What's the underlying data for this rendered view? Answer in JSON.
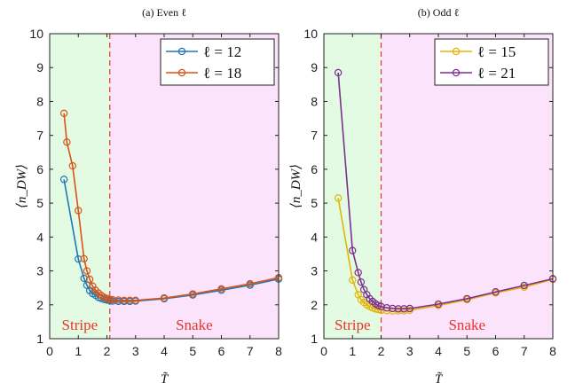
{
  "chart_data": [
    {
      "type": "line",
      "title": "(a) Even ℓ",
      "xlabel": "T̃",
      "ylabel": "⟨n_DW⟩",
      "xlim": [
        0,
        8
      ],
      "ylim": [
        1,
        10
      ],
      "xticks": [
        "0",
        "1",
        "2",
        "3",
        "4",
        "5",
        "6",
        "7",
        "8"
      ],
      "yticks": [
        "1",
        "2",
        "3",
        "4",
        "5",
        "6",
        "7",
        "8",
        "9",
        "10"
      ],
      "grid": false,
      "legend_position": "top-right",
      "divider_x": 2.1,
      "regions": [
        {
          "label": "Stripe",
          "from": 0,
          "to": 2.1,
          "color": "#e3fbe3"
        },
        {
          "label": "Snake",
          "from": 2.1,
          "to": 8,
          "color": "#fbe3fb"
        }
      ],
      "series": [
        {
          "name": "ℓ = 12",
          "color": "#1f77b4",
          "x": [
            0.5,
            1.0,
            1.2,
            1.3,
            1.4,
            1.5,
            1.6,
            1.7,
            1.8,
            1.9,
            2.0,
            2.1,
            2.2,
            2.4,
            2.6,
            2.8,
            3.0,
            4.0,
            5.0,
            6.0,
            7.0,
            8.0
          ],
          "y": [
            5.7,
            3.35,
            2.78,
            2.58,
            2.42,
            2.33,
            2.28,
            2.22,
            2.19,
            2.16,
            2.14,
            2.12,
            2.11,
            2.1,
            2.1,
            2.1,
            2.11,
            2.18,
            2.29,
            2.43,
            2.58,
            2.76
          ]
        },
        {
          "name": "ℓ = 18",
          "color": "#d95319",
          "x": [
            0.5,
            0.6,
            0.8,
            1.0,
            1.2,
            1.3,
            1.4,
            1.5,
            1.6,
            1.7,
            1.8,
            1.9,
            2.0,
            2.1,
            2.2,
            2.4,
            2.6,
            2.8,
            3.0,
            4.0,
            5.0,
            6.0,
            7.0,
            8.0
          ],
          "y": [
            7.65,
            6.8,
            6.1,
            4.78,
            3.36,
            3.0,
            2.75,
            2.55,
            2.43,
            2.35,
            2.28,
            2.22,
            2.19,
            2.16,
            2.15,
            2.14,
            2.13,
            2.13,
            2.13,
            2.2,
            2.32,
            2.47,
            2.62,
            2.8
          ]
        }
      ]
    },
    {
      "type": "line",
      "title": "(b) Odd ℓ",
      "xlabel": "T̃",
      "ylabel": "⟨n_DW⟩",
      "xlim": [
        0,
        8
      ],
      "ylim": [
        1,
        10
      ],
      "xticks": [
        "0",
        "1",
        "2",
        "3",
        "4",
        "5",
        "6",
        "7",
        "8"
      ],
      "yticks": [
        "1",
        "2",
        "3",
        "4",
        "5",
        "6",
        "7",
        "8",
        "9",
        "10"
      ],
      "grid": false,
      "legend_position": "top-right",
      "divider_x": 2.0,
      "regions": [
        {
          "label": "Stripe",
          "from": 0,
          "to": 2.0,
          "color": "#e3fbe3"
        },
        {
          "label": "Snake",
          "from": 2.0,
          "to": 8,
          "color": "#fbe3fb"
        }
      ],
      "series": [
        {
          "name": "ℓ = 15",
          "color": "#e3b505",
          "x": [
            0.5,
            1.0,
            1.2,
            1.3,
            1.4,
            1.5,
            1.6,
            1.7,
            1.8,
            1.9,
            2.0,
            2.2,
            2.4,
            2.6,
            2.8,
            3.0,
            4.0,
            5.0,
            6.0,
            7.0,
            8.0
          ],
          "y": [
            5.15,
            2.73,
            2.3,
            2.15,
            2.07,
            2.0,
            1.95,
            1.91,
            1.88,
            1.86,
            1.84,
            1.83,
            1.82,
            1.82,
            1.82,
            1.84,
            1.98,
            2.15,
            2.35,
            2.52,
            2.75
          ]
        },
        {
          "name": "ℓ = 21",
          "color": "#7e2f8e",
          "x": [
            0.5,
            1.0,
            1.2,
            1.3,
            1.4,
            1.5,
            1.6,
            1.7,
            1.8,
            1.9,
            2.0,
            2.2,
            2.4,
            2.6,
            2.8,
            3.0,
            4.0,
            5.0,
            6.0,
            7.0,
            8.0
          ],
          "y": [
            8.85,
            3.6,
            2.95,
            2.67,
            2.45,
            2.3,
            2.18,
            2.1,
            2.03,
            1.98,
            1.95,
            1.91,
            1.89,
            1.88,
            1.88,
            1.89,
            2.02,
            2.18,
            2.38,
            2.57,
            2.77
          ]
        }
      ]
    }
  ]
}
